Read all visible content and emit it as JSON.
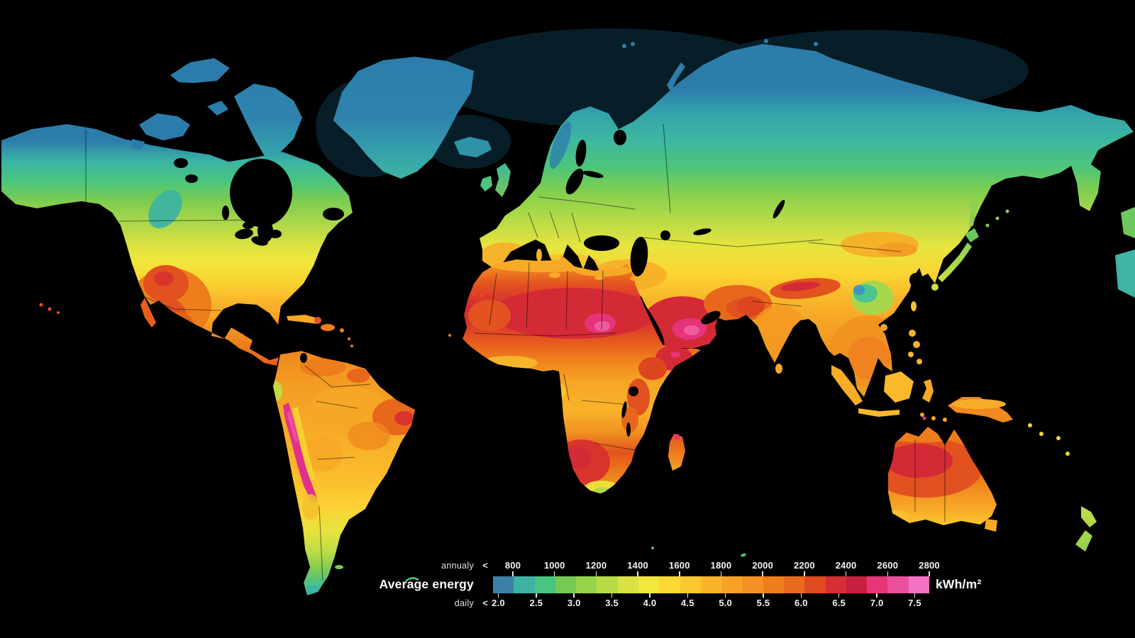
{
  "legend": {
    "title": "Average energy",
    "unit": "kWh/m²",
    "annual": {
      "label": "annualy",
      "prefix": "<",
      "ticks": [
        "800",
        "1000",
        "1200",
        "1400",
        "1600",
        "1800",
        "2000",
        "2200",
        "2400",
        "2600",
        "2800"
      ]
    },
    "daily": {
      "label": "daily",
      "prefix": "<",
      "ticks": [
        "2.0",
        "2.5",
        "3.0",
        "3.5",
        "4.0",
        "4.5",
        "5.0",
        "5.5",
        "6.0",
        "6.5",
        "7.0",
        "7.5"
      ]
    },
    "scale_colors": [
      "#3d7fa6",
      "#3eb2a2",
      "#49c581",
      "#74ca54",
      "#97d348",
      "#b7db45",
      "#d8e243",
      "#f2e73c",
      "#fbd834",
      "#fbc72e",
      "#f9b42a",
      "#f7a226",
      "#f49122",
      "#ef7d1b",
      "#e96a1e",
      "#e14b20",
      "#d52e35",
      "#c8203f",
      "#e73677",
      "#ec4f9b",
      "#f472c4"
    ]
  },
  "map": {
    "background": "#000000",
    "border_line_color": "#000000",
    "arctic_sea_tint": "#0a2836"
  },
  "chart_data": {
    "type": "heatmap",
    "title": "Average energy",
    "unit": "kWh/m²",
    "legend_position": "bottom",
    "open_ended_low": true,
    "annual_scale_kwh_m2": [
      800,
      1000,
      1200,
      1400,
      1600,
      1800,
      2000,
      2200,
      2400,
      2600,
      2800
    ],
    "daily_scale_kwh_m2": [
      2.0,
      2.5,
      3.0,
      3.5,
      4.0,
      4.5,
      5.0,
      5.5,
      6.0,
      6.5,
      7.0,
      7.5
    ],
    "scale_colors": [
      "#3d7fa6",
      "#3eb2a2",
      "#49c581",
      "#74ca54",
      "#97d348",
      "#b7db45",
      "#d8e243",
      "#f2e73c",
      "#fbd834",
      "#fbc72e",
      "#f9b42a",
      "#f7a226",
      "#f49122",
      "#ef7d1b",
      "#e96a1e",
      "#e14b20",
      "#d52e35",
      "#c8203f",
      "#e73677",
      "#ec4f9b",
      "#f472c4"
    ]
  }
}
